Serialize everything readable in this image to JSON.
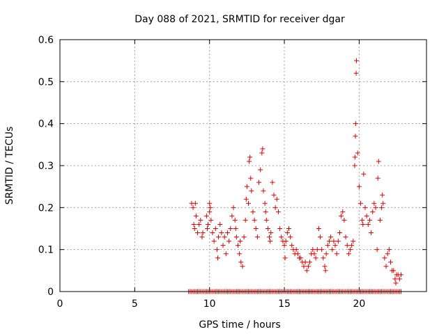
{
  "colors": {
    "series": "#dd0000",
    "grid": "#a0a0a0",
    "axis": "#000000"
  },
  "chart_data": {
    "type": "scatter",
    "title": "Day 088 of 2021, SRMTID for receiver dgar",
    "xlabel": "GPS time / hours",
    "ylabel": "SRMTID / TECUs",
    "xlim": [
      0,
      24.5
    ],
    "ylim": [
      0,
      0.6
    ],
    "xticks": [
      0,
      5,
      10,
      15,
      20
    ],
    "xtick_labels": [
      "0",
      "5",
      "10",
      "15",
      "20"
    ],
    "yticks": [
      0,
      0.1,
      0.2,
      0.3,
      0.4,
      0.5,
      0.6
    ],
    "ytick_labels": [
      "0",
      "0.1",
      "0.2",
      "0.3",
      "0.4",
      "0.5",
      "0.6"
    ],
    "grid": true,
    "marker": "+",
    "series": [
      {
        "name": "SRMTID",
        "points": [
          [
            8.8,
            0.21
          ],
          [
            8.9,
            0.2
          ],
          [
            8.95,
            0.16
          ],
          [
            9.0,
            0.15
          ],
          [
            9.05,
            0.21
          ],
          [
            9.1,
            0.18
          ],
          [
            9.2,
            0.14
          ],
          [
            9.3,
            0.16
          ],
          [
            9.4,
            0.17
          ],
          [
            9.5,
            0.13
          ],
          [
            9.55,
            0.14
          ],
          [
            9.8,
            0.18
          ],
          [
            9.85,
            0.15
          ],
          [
            9.9,
            0.16
          ],
          [
            10.0,
            0.19
          ],
          [
            10.0,
            0.21
          ],
          [
            10.05,
            0.2
          ],
          [
            10.1,
            0.17
          ],
          [
            10.2,
            0.14
          ],
          [
            10.3,
            0.12
          ],
          [
            10.4,
            0.15
          ],
          [
            10.5,
            0.1
          ],
          [
            10.55,
            0.08
          ],
          [
            10.6,
            0.13
          ],
          [
            10.7,
            0.16
          ],
          [
            10.8,
            0.14
          ],
          [
            10.9,
            0.11
          ],
          [
            11.0,
            0.13
          ],
          [
            11.1,
            0.09
          ],
          [
            11.2,
            0.14
          ],
          [
            11.3,
            0.12
          ],
          [
            11.4,
            0.15
          ],
          [
            11.5,
            0.18
          ],
          [
            11.6,
            0.2
          ],
          [
            11.7,
            0.17
          ],
          [
            11.75,
            0.15
          ],
          [
            11.8,
            0.13
          ],
          [
            11.9,
            0.11
          ],
          [
            12.0,
            0.09
          ],
          [
            12.05,
            0.12
          ],
          [
            12.1,
            0.07
          ],
          [
            12.2,
            0.06
          ],
          [
            12.3,
            0.13
          ],
          [
            12.4,
            0.17
          ],
          [
            12.45,
            0.22
          ],
          [
            12.5,
            0.25
          ],
          [
            12.6,
            0.21
          ],
          [
            12.65,
            0.31
          ],
          [
            12.7,
            0.32
          ],
          [
            12.75,
            0.27
          ],
          [
            12.8,
            0.24
          ],
          [
            12.9,
            0.19
          ],
          [
            13.0,
            0.17
          ],
          [
            13.1,
            0.15
          ],
          [
            13.2,
            0.13
          ],
          [
            13.3,
            0.26
          ],
          [
            13.4,
            0.29
          ],
          [
            13.5,
            0.33
          ],
          [
            13.55,
            0.34
          ],
          [
            13.6,
            0.24
          ],
          [
            13.7,
            0.21
          ],
          [
            13.75,
            0.19
          ],
          [
            13.8,
            0.17
          ],
          [
            13.9,
            0.15
          ],
          [
            14.0,
            0.13
          ],
          [
            14.05,
            0.12
          ],
          [
            14.1,
            0.14
          ],
          [
            14.2,
            0.26
          ],
          [
            14.3,
            0.23
          ],
          [
            14.4,
            0.2
          ],
          [
            14.5,
            0.22
          ],
          [
            14.6,
            0.19
          ],
          [
            14.7,
            0.15
          ],
          [
            14.8,
            0.13
          ],
          [
            14.9,
            0.12
          ],
          [
            15.0,
            0.11
          ],
          [
            15.05,
            0.08
          ],
          [
            15.1,
            0.12
          ],
          [
            15.2,
            0.14
          ],
          [
            15.3,
            0.15
          ],
          [
            15.4,
            0.13
          ],
          [
            15.5,
            0.11
          ],
          [
            15.6,
            0.1
          ],
          [
            15.7,
            0.09
          ],
          [
            15.8,
            0.1
          ],
          [
            15.9,
            0.09
          ],
          [
            16.0,
            0.08
          ],
          [
            16.1,
            0.08
          ],
          [
            16.2,
            0.07
          ],
          [
            16.3,
            0.06
          ],
          [
            16.4,
            0.07
          ],
          [
            16.5,
            0.05
          ],
          [
            16.6,
            0.06
          ],
          [
            16.7,
            0.07
          ],
          [
            16.8,
            0.09
          ],
          [
            16.9,
            0.1
          ],
          [
            17.0,
            0.09
          ],
          [
            17.1,
            0.08
          ],
          [
            17.2,
            0.1
          ],
          [
            17.3,
            0.15
          ],
          [
            17.4,
            0.13
          ],
          [
            17.5,
            0.1
          ],
          [
            17.6,
            0.08
          ],
          [
            17.7,
            0.06
          ],
          [
            17.75,
            0.05
          ],
          [
            17.8,
            0.09
          ],
          [
            17.9,
            0.11
          ],
          [
            18.0,
            0.12
          ],
          [
            18.1,
            0.13
          ],
          [
            18.2,
            0.1
          ],
          [
            18.3,
            0.12
          ],
          [
            18.4,
            0.11
          ],
          [
            18.5,
            0.09
          ],
          [
            18.6,
            0.12
          ],
          [
            18.7,
            0.14
          ],
          [
            18.8,
            0.18
          ],
          [
            18.9,
            0.19
          ],
          [
            19.0,
            0.17
          ],
          [
            19.1,
            0.13
          ],
          [
            19.2,
            0.11
          ],
          [
            19.3,
            0.09
          ],
          [
            19.4,
            0.1
          ],
          [
            19.5,
            0.11
          ],
          [
            19.6,
            0.12
          ],
          [
            19.7,
            0.3
          ],
          [
            19.72,
            0.32
          ],
          [
            19.75,
            0.37
          ],
          [
            19.77,
            0.4
          ],
          [
            19.8,
            0.52
          ],
          [
            19.82,
            0.55
          ],
          [
            19.9,
            0.33
          ],
          [
            20.0,
            0.25
          ],
          [
            20.1,
            0.21
          ],
          [
            20.2,
            0.17
          ],
          [
            20.25,
            0.16
          ],
          [
            20.3,
            0.28
          ],
          [
            20.4,
            0.2
          ],
          [
            20.5,
            0.18
          ],
          [
            20.6,
            0.16
          ],
          [
            20.7,
            0.17
          ],
          [
            20.8,
            0.14
          ],
          [
            20.9,
            0.19
          ],
          [
            21.0,
            0.21
          ],
          [
            21.1,
            0.2
          ],
          [
            21.2,
            0.1
          ],
          [
            21.25,
            0.27
          ],
          [
            21.3,
            0.31
          ],
          [
            21.4,
            0.17
          ],
          [
            21.5,
            0.2
          ],
          [
            21.55,
            0.23
          ],
          [
            21.6,
            0.21
          ],
          [
            21.7,
            0.08
          ],
          [
            21.8,
            0.06
          ],
          [
            21.9,
            0.09
          ],
          [
            22.0,
            0.1
          ],
          [
            22.1,
            0.07
          ],
          [
            22.2,
            0.05
          ],
          [
            22.3,
            0.05
          ],
          [
            22.4,
            0.03
          ],
          [
            22.45,
            0.02
          ],
          [
            22.5,
            0.04
          ],
          [
            22.6,
            0.04
          ],
          [
            22.7,
            0.03
          ],
          [
            22.8,
            0.04
          ]
        ],
        "zero_span": [
          8.6,
          22.8
        ]
      }
    ]
  }
}
